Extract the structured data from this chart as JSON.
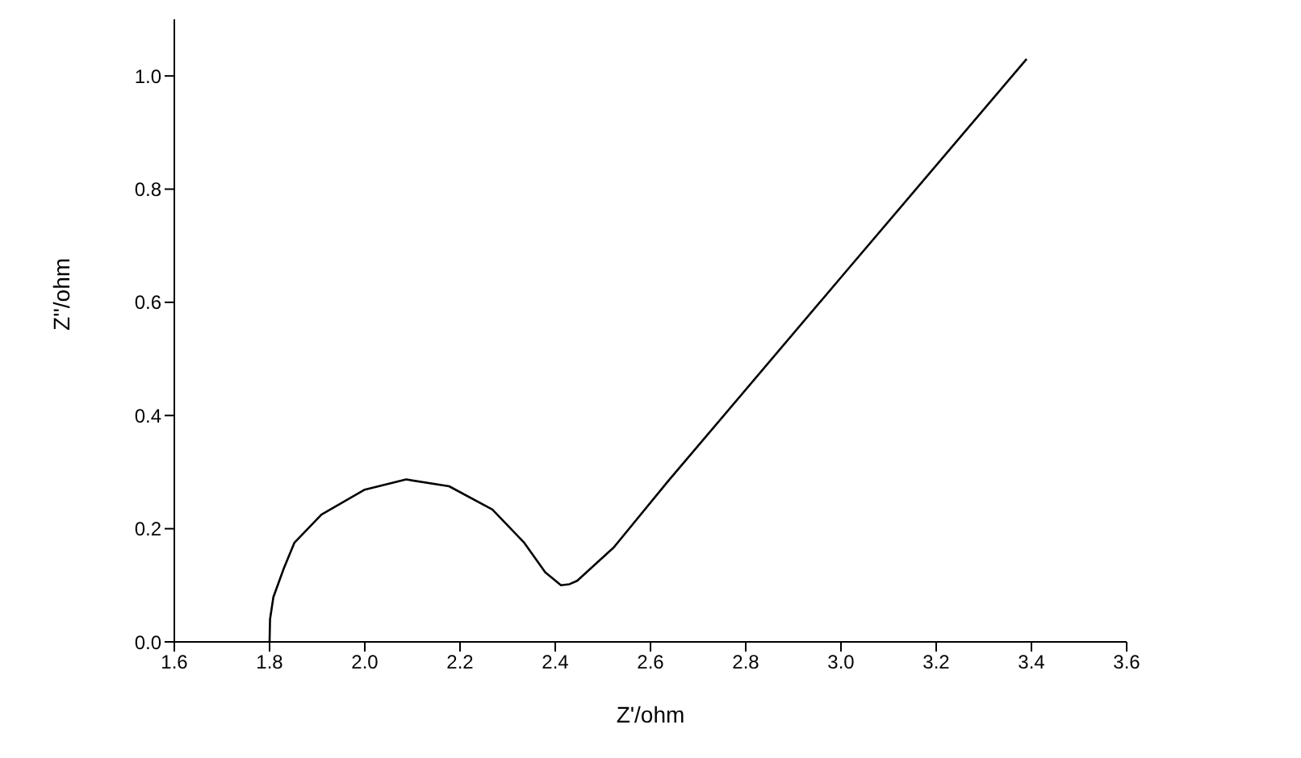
{
  "chart_data": {
    "type": "line",
    "xlabel": "Z'/ohm",
    "ylabel": "Z''/ohm",
    "x": [
      1.8,
      1.801,
      1.808,
      1.83,
      1.852,
      1.909,
      2.0,
      2.087,
      2.177,
      2.268,
      2.335,
      2.379,
      2.412,
      2.43,
      2.446,
      2.523,
      2.637,
      3.0,
      3.39
    ],
    "series": [
      {
        "color": "#000000",
        "values": [
          0,
          0.04,
          0.079,
          0.13,
          0.175,
          0.225,
          0.269,
          0.287,
          0.275,
          0.234,
          0.175,
          0.123,
          0.1,
          0.102,
          0.108,
          0.167,
          0.284,
          0.644,
          1.03
        ]
      }
    ],
    "xlim": [
      1.6,
      3.6
    ],
    "ylim": [
      0,
      1.1
    ],
    "xticks": [
      1.6,
      1.8,
      {
        "value": 2.0,
        "label": "2.0"
      },
      2.2,
      2.4,
      2.6,
      2.8,
      {
        "value": 3.0,
        "label": "3.0"
      },
      3.2,
      3.4,
      3.6
    ],
    "yticks": [
      {
        "value": 0,
        "label": "0.0"
      },
      0.2,
      0.4,
      0.6,
      0.8,
      {
        "value": 1.0,
        "label": "1.0"
      }
    ],
    "grid": false,
    "legend": false,
    "marker": "none",
    "line_style": "solid"
  }
}
